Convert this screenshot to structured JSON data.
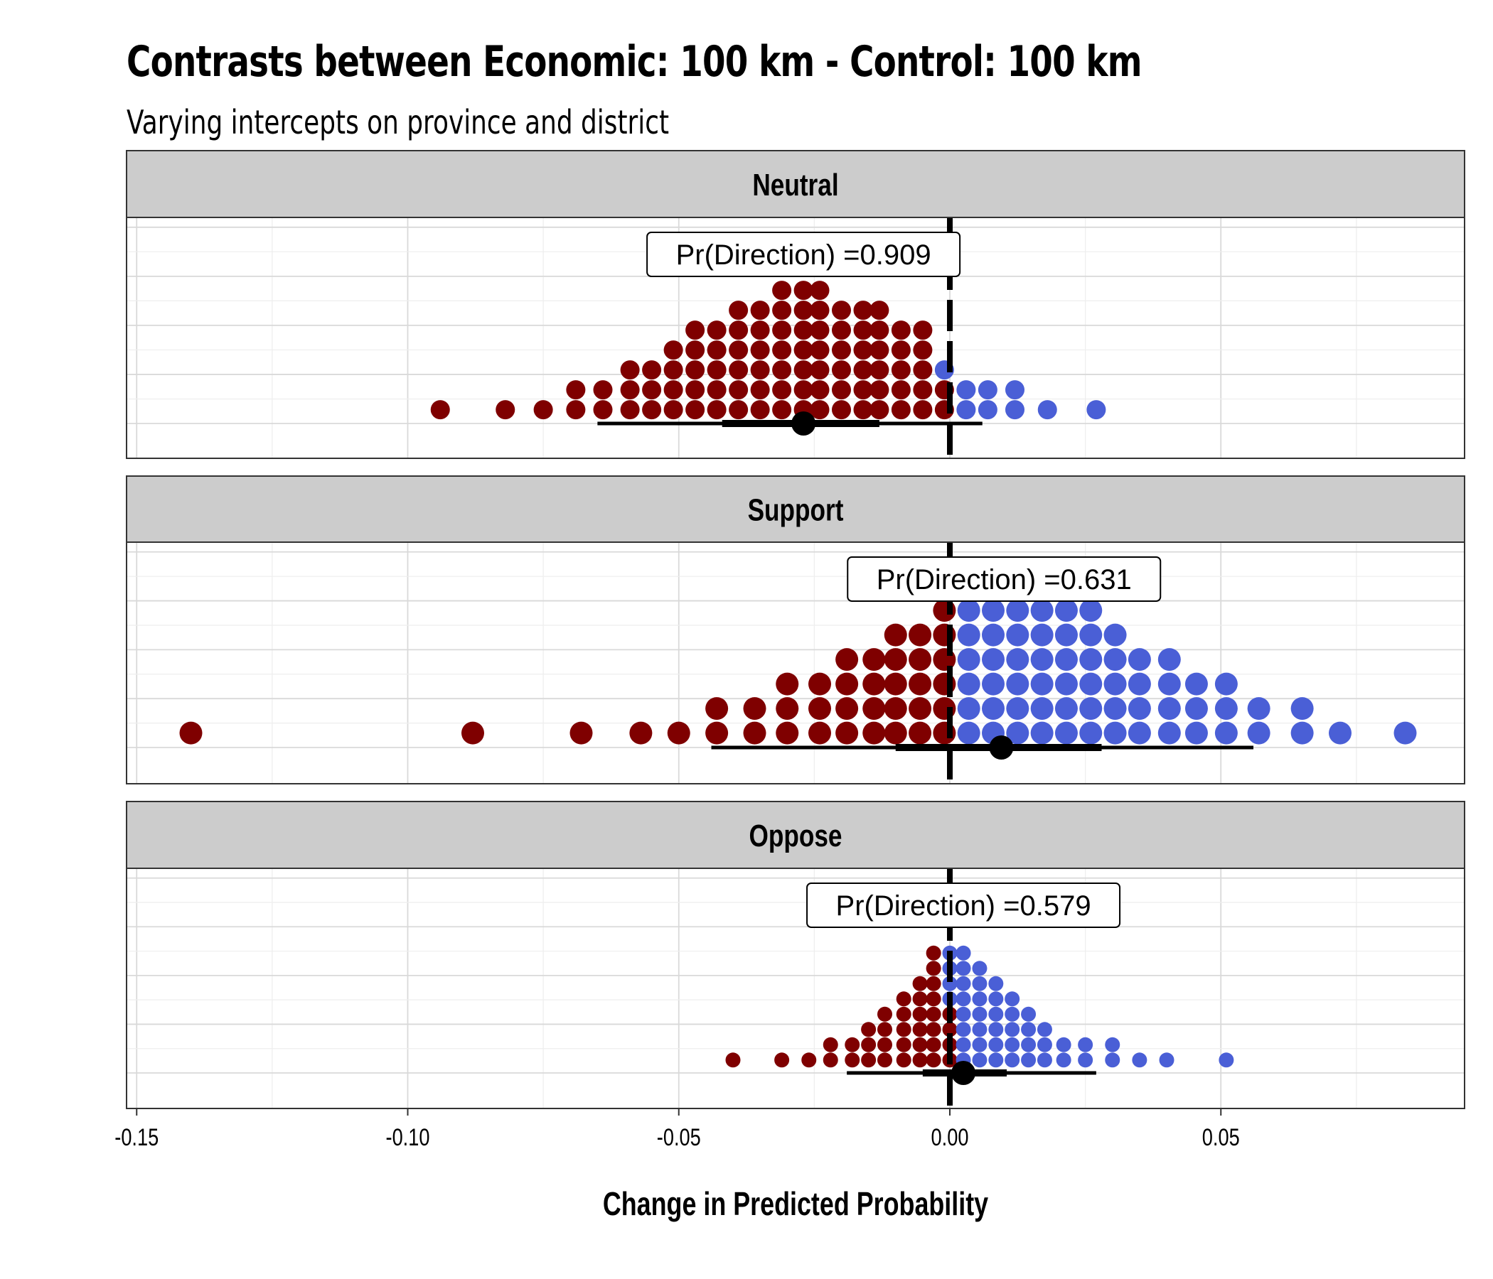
{
  "title": "Contrasts between Economic: 100 km - Control: 100 km",
  "subtitle": "Varying intercepts on province and district",
  "colors": {
    "negative": "#7f0000",
    "positive": "#4a5fd6",
    "strip": "#cccccc",
    "grid": "#d9d9d9",
    "grid_minor": "#eeeeee"
  },
  "chart_data": {
    "type": "dotplot",
    "xlabel": "Change in Predicted Probability",
    "xlim": [
      -0.152,
      0.095
    ],
    "xticks": [
      -0.15,
      -0.1,
      -0.05,
      0.0,
      0.05
    ],
    "xtick_labels": [
      "-0.15",
      "-0.10",
      "-0.05",
      "0.00",
      "0.05"
    ],
    "reference_line": 0.0,
    "panels": [
      {
        "name": "Neutral",
        "annotation": "Pr(Direction) =0.909",
        "annotation_x": -0.027,
        "point_estimate": -0.027,
        "interval_66": [
          -0.042,
          -0.013
        ],
        "interval_95": [
          -0.065,
          0.006
        ],
        "dot_size": "medium",
        "columns": [
          {
            "x": -0.094,
            "n": 1
          },
          {
            "x": -0.082,
            "n": 1
          },
          {
            "x": -0.075,
            "n": 1
          },
          {
            "x": -0.069,
            "n": 2
          },
          {
            "x": -0.064,
            "n": 2
          },
          {
            "x": -0.059,
            "n": 3
          },
          {
            "x": -0.055,
            "n": 3
          },
          {
            "x": -0.051,
            "n": 4
          },
          {
            "x": -0.047,
            "n": 5
          },
          {
            "x": -0.043,
            "n": 5
          },
          {
            "x": -0.039,
            "n": 6
          },
          {
            "x": -0.035,
            "n": 6
          },
          {
            "x": -0.031,
            "n": 7
          },
          {
            "x": -0.027,
            "n": 7
          },
          {
            "x": -0.024,
            "n": 7
          },
          {
            "x": -0.02,
            "n": 6
          },
          {
            "x": -0.016,
            "n": 6
          },
          {
            "x": -0.013,
            "n": 6
          },
          {
            "x": -0.009,
            "n": 5
          },
          {
            "x": -0.005,
            "n": 5
          },
          {
            "x": -0.001,
            "n": 3,
            "pos_top": 1
          },
          {
            "x": 0.003,
            "n": 2
          },
          {
            "x": 0.007,
            "n": 2
          },
          {
            "x": 0.012,
            "n": 2
          },
          {
            "x": 0.018,
            "n": 1
          },
          {
            "x": 0.027,
            "n": 1
          }
        ]
      },
      {
        "name": "Support",
        "annotation": "Pr(Direction) =0.631",
        "annotation_x": 0.01,
        "point_estimate": 0.0095,
        "interval_66": [
          -0.01,
          0.028
        ],
        "interval_95": [
          -0.044,
          0.056
        ],
        "dot_size": "large",
        "columns": [
          {
            "x": -0.14,
            "n": 1
          },
          {
            "x": -0.088,
            "n": 1
          },
          {
            "x": -0.068,
            "n": 1
          },
          {
            "x": -0.057,
            "n": 1
          },
          {
            "x": -0.05,
            "n": 1
          },
          {
            "x": -0.043,
            "n": 2
          },
          {
            "x": -0.036,
            "n": 2
          },
          {
            "x": -0.03,
            "n": 3
          },
          {
            "x": -0.024,
            "n": 3
          },
          {
            "x": -0.019,
            "n": 4
          },
          {
            "x": -0.014,
            "n": 4
          },
          {
            "x": -0.01,
            "n": 5
          },
          {
            "x": -0.0055,
            "n": 5
          },
          {
            "x": -0.001,
            "n": 6
          },
          {
            "x": 0.0035,
            "n": 6
          },
          {
            "x": 0.008,
            "n": 6
          },
          {
            "x": 0.0125,
            "n": 6
          },
          {
            "x": 0.017,
            "n": 6
          },
          {
            "x": 0.0215,
            "n": 6
          },
          {
            "x": 0.026,
            "n": 6
          },
          {
            "x": 0.0305,
            "n": 5
          },
          {
            "x": 0.035,
            "n": 4
          },
          {
            "x": 0.0405,
            "n": 4
          },
          {
            "x": 0.0455,
            "n": 3
          },
          {
            "x": 0.051,
            "n": 3
          },
          {
            "x": 0.057,
            "n": 2
          },
          {
            "x": 0.065,
            "n": 2
          },
          {
            "x": 0.072,
            "n": 1
          },
          {
            "x": 0.084,
            "n": 1
          }
        ]
      },
      {
        "name": "Oppose",
        "annotation": "Pr(Direction) =0.579",
        "annotation_x": 0.0025,
        "point_estimate": 0.0025,
        "interval_66": [
          -0.005,
          0.0105
        ],
        "interval_95": [
          -0.019,
          0.027
        ],
        "dot_size": "small",
        "columns": [
          {
            "x": -0.04,
            "n": 1
          },
          {
            "x": -0.031,
            "n": 1
          },
          {
            "x": -0.026,
            "n": 1
          },
          {
            "x": -0.022,
            "n": 2
          },
          {
            "x": -0.018,
            "n": 2
          },
          {
            "x": -0.015,
            "n": 3
          },
          {
            "x": -0.012,
            "n": 4
          },
          {
            "x": -0.0085,
            "n": 5
          },
          {
            "x": -0.0055,
            "n": 6
          },
          {
            "x": -0.003,
            "n": 8
          },
          {
            "x": 0.0,
            "n": 8,
            "pos_top": 4
          },
          {
            "x": 0.0025,
            "n": 8
          },
          {
            "x": 0.0055,
            "n": 7
          },
          {
            "x": 0.0085,
            "n": 6
          },
          {
            "x": 0.0115,
            "n": 5
          },
          {
            "x": 0.0145,
            "n": 4
          },
          {
            "x": 0.0175,
            "n": 3
          },
          {
            "x": 0.021,
            "n": 2
          },
          {
            "x": 0.025,
            "n": 2
          },
          {
            "x": 0.03,
            "n": 2
          },
          {
            "x": 0.035,
            "n": 1
          },
          {
            "x": 0.04,
            "n": 1
          },
          {
            "x": 0.051,
            "n": 1
          }
        ]
      }
    ]
  }
}
